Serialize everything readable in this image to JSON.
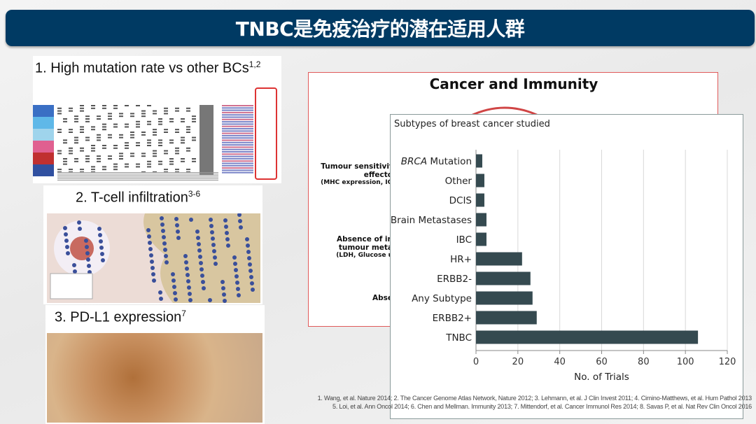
{
  "title": "TNBC是免疫治疗的潜在适用人群",
  "left_panels": [
    {
      "label": "1.  High mutation rate vs other BCs",
      "sup": "1,2"
    },
    {
      "label": "2.  T-cell infiltration",
      "sup": "3-6"
    },
    {
      "label": "3. PD-L1 expression",
      "sup": "7"
    }
  ],
  "cancer_immunity": {
    "title": "Cancer and Immunity",
    "labels": [
      {
        "main": "Tumour sensitivit",
        "second": "effecto",
        "sub": "(MHC expression, IG"
      },
      {
        "main": "Absence of in",
        "second": "tumour meta",
        "sub": "(LDH, Glucose u"
      },
      {
        "main": "Abse",
        "second": "",
        "sub": ""
      }
    ]
  },
  "chart_data": {
    "type": "bar",
    "orientation": "horizontal",
    "title": "Subtypes of breast cancer studied",
    "categories": [
      "BRCA Mutation",
      "Other",
      "DCIS",
      "Brain Metastases",
      "IBC",
      "HR+",
      "ERBB2-",
      "Any Subtype",
      "ERBB2+",
      "TNBC"
    ],
    "values": [
      3,
      4,
      4,
      5,
      5,
      22,
      26,
      27,
      29,
      106
    ],
    "xlabel": "No. of Trials",
    "ylabel": "",
    "xlim": [
      0,
      120
    ],
    "xticks": [
      0,
      20,
      40,
      60,
      80,
      100,
      120
    ],
    "grid": true,
    "bar_color": "#354a50"
  },
  "references": [
    "1. Wang, et al. Nature 2014; 2. The Cancer Genome Atlas Network, Nature 2012; 3. Lehmann, et al. J Clin Invest 2011; 4. Cimino-Matthews, et al. Hum Pathol 2013",
    "5. Loi, et al. Ann Oncol 2014; 6. Chen and Mellman. Immunity 2013; 7. Mittendorf, et al. Cancer Immunol Res 2014; 8. Savas P, et al. Nat Rev Clin Oncol 2016"
  ],
  "colors": {
    "title_bar": "#003a63",
    "red_border": "#e05a5a"
  }
}
